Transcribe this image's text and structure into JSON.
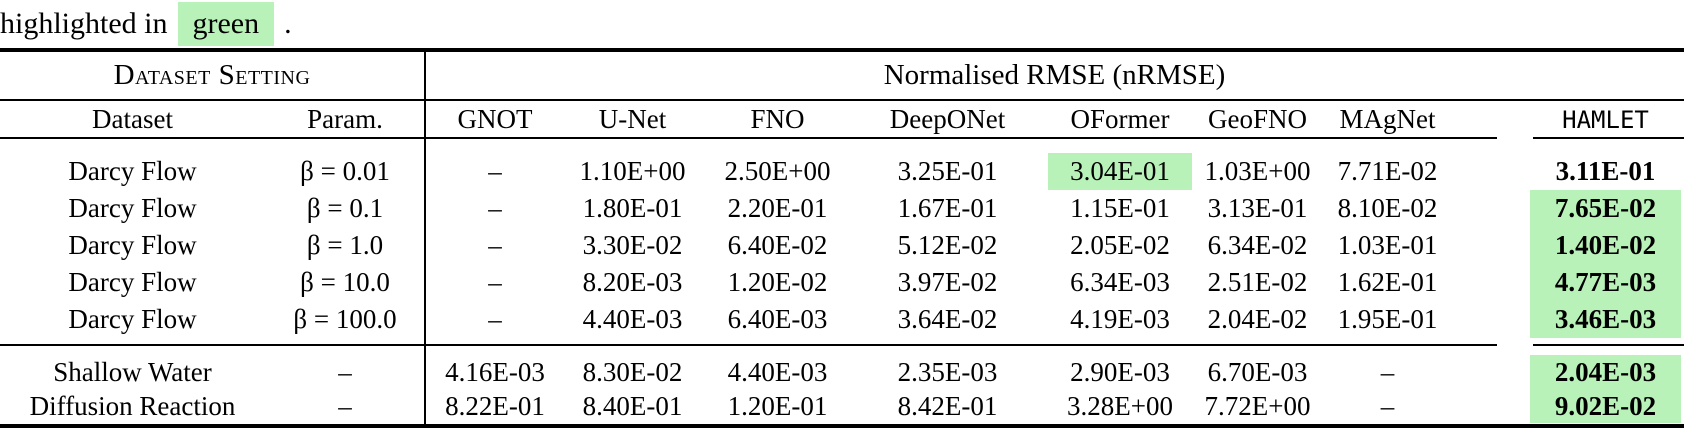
{
  "caption": {
    "text_before": "highlighted in",
    "highlighted_word": "green",
    "text_after": "."
  },
  "colors": {
    "highlight_green": "#b9f2b9",
    "rule_black": "#000000"
  },
  "table": {
    "group_headers": {
      "left": "Dataset Setting",
      "right": "Normalised RMSE (nRMSE)"
    },
    "columns": [
      "Dataset",
      "Param.",
      "GNOT",
      "U-Net",
      "FNO",
      "DeepONet",
      "OFormer",
      "GeoFNO",
      "MAgNet",
      "HAMLET"
    ],
    "rows": [
      {
        "cells": [
          "Darcy Flow",
          "β = 0.01",
          "–",
          "1.10E+00",
          "2.50E+00",
          "3.25E-01",
          "3.04E-01",
          "1.03E+00",
          "7.71E-02",
          "3.11E-01"
        ],
        "highlight_cell": 6,
        "hamlet_green": false
      },
      {
        "cells": [
          "Darcy Flow",
          "β = 0.1",
          "–",
          "1.80E-01",
          "2.20E-01",
          "1.67E-01",
          "1.15E-01",
          "3.13E-01",
          "8.10E-02",
          "7.65E-02"
        ],
        "highlight_cell": null,
        "hamlet_green": true
      },
      {
        "cells": [
          "Darcy Flow",
          "β = 1.0",
          "–",
          "3.30E-02",
          "6.40E-02",
          "5.12E-02",
          "2.05E-02",
          "6.34E-02",
          "1.03E-01",
          "1.40E-02"
        ],
        "highlight_cell": null,
        "hamlet_green": true
      },
      {
        "cells": [
          "Darcy Flow",
          "β = 10.0",
          "–",
          "8.20E-03",
          "1.20E-02",
          "3.97E-02",
          "6.34E-03",
          "2.51E-02",
          "1.62E-01",
          "4.77E-03"
        ],
        "highlight_cell": null,
        "hamlet_green": true
      },
      {
        "cells": [
          "Darcy Flow",
          "β = 100.0",
          "–",
          "4.40E-03",
          "6.40E-03",
          "3.64E-02",
          "4.19E-03",
          "2.04E-02",
          "1.95E-01",
          "3.46E-03"
        ],
        "highlight_cell": null,
        "hamlet_green": true
      },
      {
        "cells": [
          "Shallow Water",
          "–",
          "4.16E-03",
          "8.30E-02",
          "4.40E-03",
          "2.35E-03",
          "2.90E-03",
          "6.70E-03",
          "–",
          "2.04E-03"
        ],
        "highlight_cell": null,
        "hamlet_green": true
      },
      {
        "cells": [
          "Diffusion Reaction",
          "–",
          "8.22E-01",
          "8.40E-01",
          "1.20E-01",
          "8.42E-01",
          "3.28E+00",
          "7.72E+00",
          "–",
          "9.02E-02"
        ],
        "highlight_cell": null,
        "hamlet_green": true
      }
    ]
  }
}
